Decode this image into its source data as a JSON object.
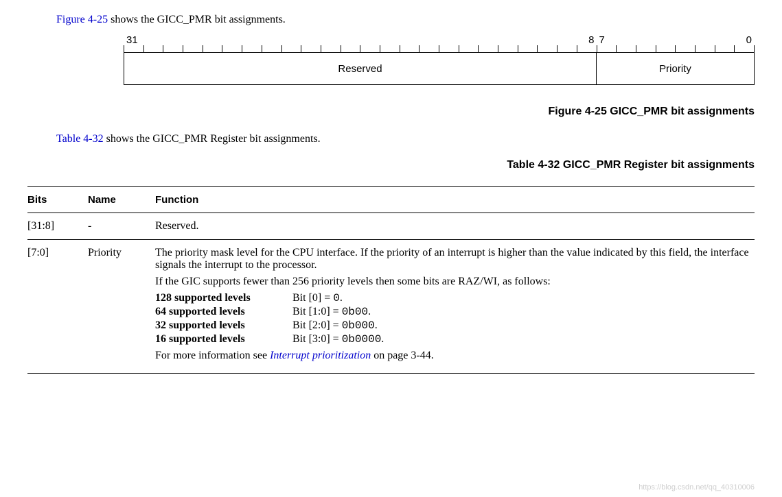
{
  "intro1": {
    "xref": "Figure 4-25",
    "rest": " shows the GICC_PMR bit assignments."
  },
  "bitfield": {
    "ticks": {
      "hi_left": "31",
      "mid_right": "8",
      "mid_left": "7",
      "lo_right": "0"
    },
    "reserved_label": "Reserved",
    "priority_label": "Priority",
    "reserved_bits": 24,
    "priority_bits": 8,
    "total_bits": 32
  },
  "figure_caption": "Figure 4-25 GICC_PMR bit assignments",
  "intro2": {
    "xref": "Table 4-32",
    "rest": " shows the GICC_PMR Register bit assignments."
  },
  "table_caption": "Table 4-32 GICC_PMR Register bit assignments",
  "table": {
    "headers": {
      "bits": "Bits",
      "name": "Name",
      "func": "Function"
    },
    "rows": [
      {
        "bits": "[31:8]",
        "name": "-",
        "func_plain": "Reserved."
      },
      {
        "bits": "[7:0]",
        "name": "Priority",
        "para1": "The priority mask level for the CPU interface. If the priority of an interrupt is higher than the value indicated by this field, the interface signals the interrupt to the processor.",
        "para2": "If the GIC supports fewer than 256 priority levels then some bits are RAZ/WI, as follows:",
        "levels": [
          {
            "label": "128 supported levels",
            "text_a": "Bit [0] = ",
            "mono": "0",
            "text_b": "."
          },
          {
            "label": "64 supported levels",
            "text_a": "Bit [1:0] = ",
            "mono": "0b00",
            "text_b": "."
          },
          {
            "label": "32 supported levels",
            "text_a": "Bit [2:0] = ",
            "mono": "0b000",
            "text_b": "."
          },
          {
            "label": "16 supported levels",
            "text_a": "Bit [3:0] = ",
            "mono": "0b0000",
            "text_b": "."
          }
        ],
        "moreinfo_a": "For more information see ",
        "moreinfo_link": "Interrupt prioritization",
        "moreinfo_b": " on page 3-44."
      }
    ]
  },
  "watermark": "https://blog.csdn.net/qq_40310006"
}
